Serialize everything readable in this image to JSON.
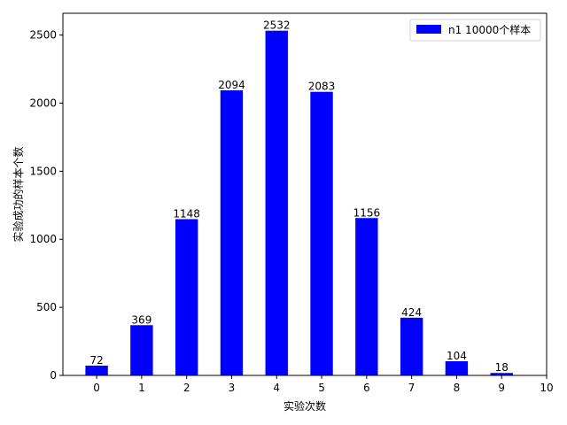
{
  "chart_data": {
    "type": "bar",
    "x": [
      0,
      1,
      2,
      3,
      4,
      5,
      6,
      7,
      8,
      9
    ],
    "series": [
      {
        "name": "n1  10000个样本",
        "values": [
          72,
          369,
          1148,
          2094,
          2532,
          2083,
          1156,
          424,
          104,
          18
        ],
        "color": "#0000ff"
      }
    ],
    "xlabel": "实验次数",
    "ylabel": "实验成功的样本个数",
    "xticks": [
      0,
      1,
      2,
      3,
      4,
      5,
      6,
      7,
      8,
      9,
      10
    ],
    "yticks": [
      0,
      500,
      1000,
      1500,
      2000,
      2500
    ],
    "xlim": [
      -0.75,
      10
    ],
    "ylim": [
      0,
      2660
    ],
    "bar_width": 0.5,
    "grid": false,
    "legend_position": "top-right",
    "data_labels": true
  }
}
